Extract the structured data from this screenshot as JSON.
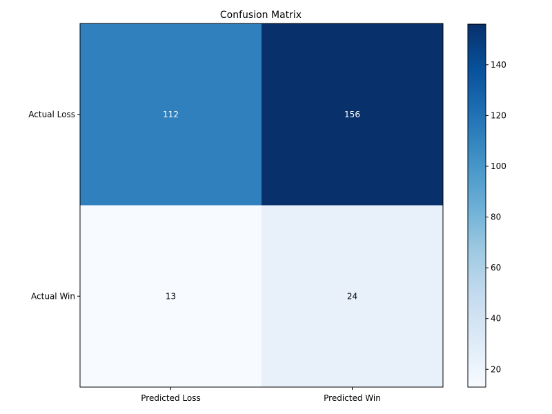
{
  "chart_data": {
    "type": "heatmap",
    "title": "Confusion Matrix",
    "xlabel": "",
    "ylabel": "",
    "x_categories": [
      "Predicted Loss",
      "Predicted Win"
    ],
    "y_categories": [
      "Actual Loss",
      "Actual Win"
    ],
    "values": [
      [
        112,
        156
      ],
      [
        13,
        24
      ]
    ],
    "colormap": "Blues",
    "colorbar": {
      "range": [
        13,
        156
      ],
      "ticks": [
        20,
        40,
        60,
        80,
        100,
        120,
        140
      ]
    },
    "grid": false,
    "cell_text_colors": {
      "dark_background": "#ffffff",
      "light_background": "#000000"
    }
  }
}
